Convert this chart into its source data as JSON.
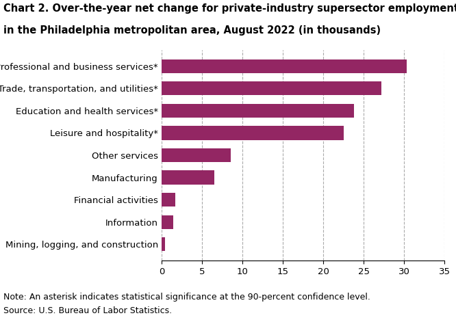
{
  "title_line1": "Chart 2. Over-the-year net change for private-industry supersector employment",
  "title_line2": "in the Philadelphia metropolitan area, August 2022 (in thousands)",
  "categories": [
    "Mining, logging, and construction",
    "Information",
    "Financial activities",
    "Manufacturing",
    "Other services",
    "Leisure and hospitality*",
    "Education and health services*",
    "Trade, transportation, and utilities*",
    "Professional and business services*"
  ],
  "values": [
    0.4,
    1.4,
    1.7,
    6.5,
    8.5,
    22.5,
    23.8,
    27.2,
    30.3
  ],
  "bar_color": "#932663",
  "xlim": [
    0,
    35
  ],
  "xticks": [
    0,
    5,
    10,
    15,
    20,
    25,
    30,
    35
  ],
  "note": "Note: An asterisk indicates statistical significance at the 90-percent confidence level.",
  "source": "Source: U.S. Bureau of Labor Statistics.",
  "title_fontsize": 10.5,
  "tick_fontsize": 9.5,
  "note_fontsize": 9.0,
  "bar_height": 0.62
}
